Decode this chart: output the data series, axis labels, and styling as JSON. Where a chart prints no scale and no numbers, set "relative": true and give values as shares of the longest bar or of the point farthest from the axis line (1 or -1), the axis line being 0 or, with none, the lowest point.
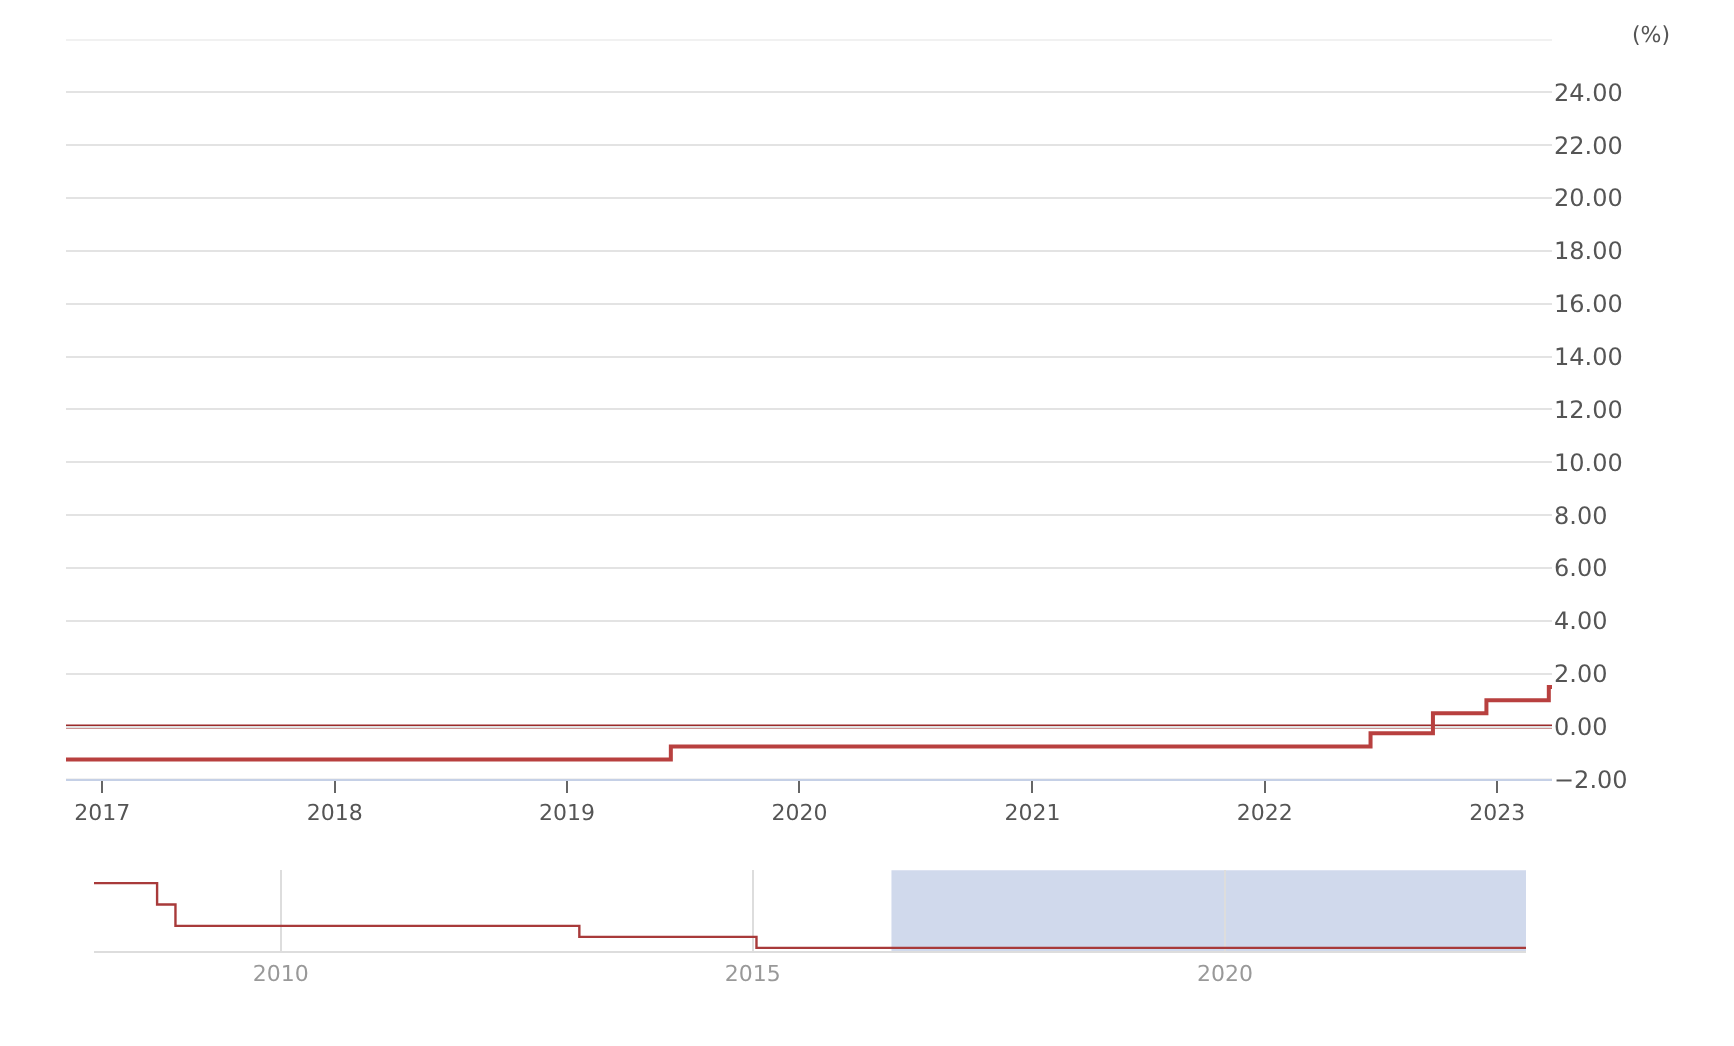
{
  "chart_data": [
    {
      "type": "step",
      "ylabel": "(%)",
      "x": [
        "2016-11-05",
        "2019-06-13",
        "2022-06-16",
        "2022-09-22",
        "2022-12-15",
        "2023-03-23",
        "2023-03-28"
      ],
      "series": [
        {
          "color": "#b8403f",
          "values": [
            -1.25,
            -0.75,
            -0.25,
            0.5,
            1.0,
            1.5,
            1.5
          ]
        }
      ],
      "ref_lines": [
        {
          "axis": "y",
          "value": 0,
          "color": "#9b2b2b"
        }
      ],
      "xlim": [
        "2016-11-05",
        "2023-03-28"
      ],
      "xticks": [
        {
          "value": "2017",
          "label": "2017"
        },
        {
          "value": "2018",
          "label": "2018"
        },
        {
          "value": "2019",
          "label": "2019"
        },
        {
          "value": "2020",
          "label": "2020"
        },
        {
          "value": "2021",
          "label": "2021"
        },
        {
          "value": "2022",
          "label": "2022"
        },
        {
          "value": "2023",
          "label": "2023"
        }
      ],
      "ylim": [
        -2,
        26
      ],
      "yticks": [
        {
          "value": -2,
          "label": "−2.00"
        },
        {
          "value": 0,
          "label": "0.00"
        },
        {
          "value": 2,
          "label": "2.00"
        },
        {
          "value": 4,
          "label": "4.00"
        },
        {
          "value": 6,
          "label": "6.00"
        },
        {
          "value": 8,
          "label": "8.00"
        },
        {
          "value": 10,
          "label": "10.00"
        },
        {
          "value": 12,
          "label": "12.00"
        },
        {
          "value": 14,
          "label": "14.00"
        },
        {
          "value": 16,
          "label": "16.00"
        },
        {
          "value": 18,
          "label": "18.00"
        },
        {
          "value": 20,
          "label": "20.00"
        },
        {
          "value": 22,
          "label": "22.00"
        },
        {
          "value": 24,
          "label": "24.00"
        },
        {
          "value": 26,
          "label": null
        }
      ],
      "grid": "y"
    },
    {
      "type": "step",
      "relative": true,
      "x": [
        "2008-01-10",
        "2008-09-10",
        "2008-11-20",
        "2013-03-01",
        "2015-01-15",
        "2023-03-10"
      ],
      "series": [
        {
          "color": "#a83a3a",
          "values": [
            1,
            0.67,
            0.34,
            0.17,
            0,
            0
          ]
        }
      ],
      "bands": [
        {
          "axis": "x",
          "from": "2016-06-20",
          "to": "2023-03-10",
          "color": "#d0d9ec"
        }
      ],
      "xlim": [
        "2008-01-10",
        "2023-03-10"
      ],
      "xticks": [
        {
          "value": "2010",
          "label": "2010"
        },
        {
          "value": "2015",
          "label": "2015"
        },
        {
          "value": "2020",
          "label": "2020"
        }
      ],
      "grid": "x"
    }
  ]
}
